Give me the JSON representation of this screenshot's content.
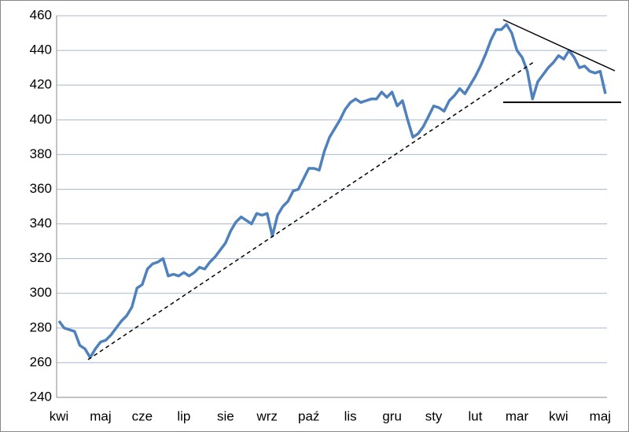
{
  "chart_data": {
    "type": "line",
    "categories": [
      "kwi",
      null,
      null,
      null,
      null,
      null,
      null,
      null,
      "maj",
      null,
      null,
      null,
      null,
      null,
      null,
      null,
      "cze",
      null,
      null,
      null,
      null,
      null,
      null,
      null,
      "lip",
      null,
      null,
      null,
      null,
      null,
      null,
      null,
      "sie",
      null,
      null,
      null,
      null,
      null,
      null,
      null,
      "wrz",
      null,
      null,
      null,
      null,
      null,
      null,
      null,
      "paź",
      null,
      null,
      null,
      null,
      null,
      null,
      null,
      "lis",
      null,
      null,
      null,
      null,
      null,
      null,
      null,
      "gru",
      null,
      null,
      null,
      null,
      null,
      null,
      null,
      "sty",
      null,
      null,
      null,
      null,
      null,
      null,
      null,
      "lut",
      null,
      null,
      null,
      null,
      null,
      null,
      null,
      "mar",
      null,
      null,
      null,
      null,
      null,
      null,
      null,
      "kwi",
      null,
      null,
      null,
      null,
      null,
      null,
      null,
      "maj",
      null
    ],
    "values": [
      284,
      280,
      279,
      278,
      270,
      268,
      263,
      268,
      272,
      273,
      276,
      280,
      284,
      287,
      292,
      303,
      305,
      314,
      317,
      318,
      320,
      310,
      311,
      310,
      312,
      310,
      312,
      315,
      314,
      318,
      321,
      325,
      329,
      336,
      341,
      344,
      342,
      340,
      346,
      345,
      346,
      333,
      345,
      350,
      353,
      359,
      360,
      366,
      372,
      372,
      371,
      382,
      390,
      395,
      400,
      406,
      410,
      412,
      410,
      411,
      412,
      412,
      416,
      413,
      416,
      408,
      411,
      400,
      390,
      392,
      396,
      402,
      408,
      407,
      405,
      411,
      414,
      418,
      415,
      420,
      425,
      431,
      438,
      446,
      452,
      452,
      455,
      450,
      440,
      436,
      428,
      412,
      422,
      426,
      430,
      433,
      437,
      435,
      440,
      436,
      430,
      431,
      428,
      427,
      428,
      415
    ],
    "color": "#4f81bd",
    "ylim": [
      240,
      460
    ],
    "yticks": [
      240,
      260,
      280,
      300,
      320,
      340,
      360,
      380,
      400,
      420,
      440,
      460
    ],
    "grid": true
  }
}
